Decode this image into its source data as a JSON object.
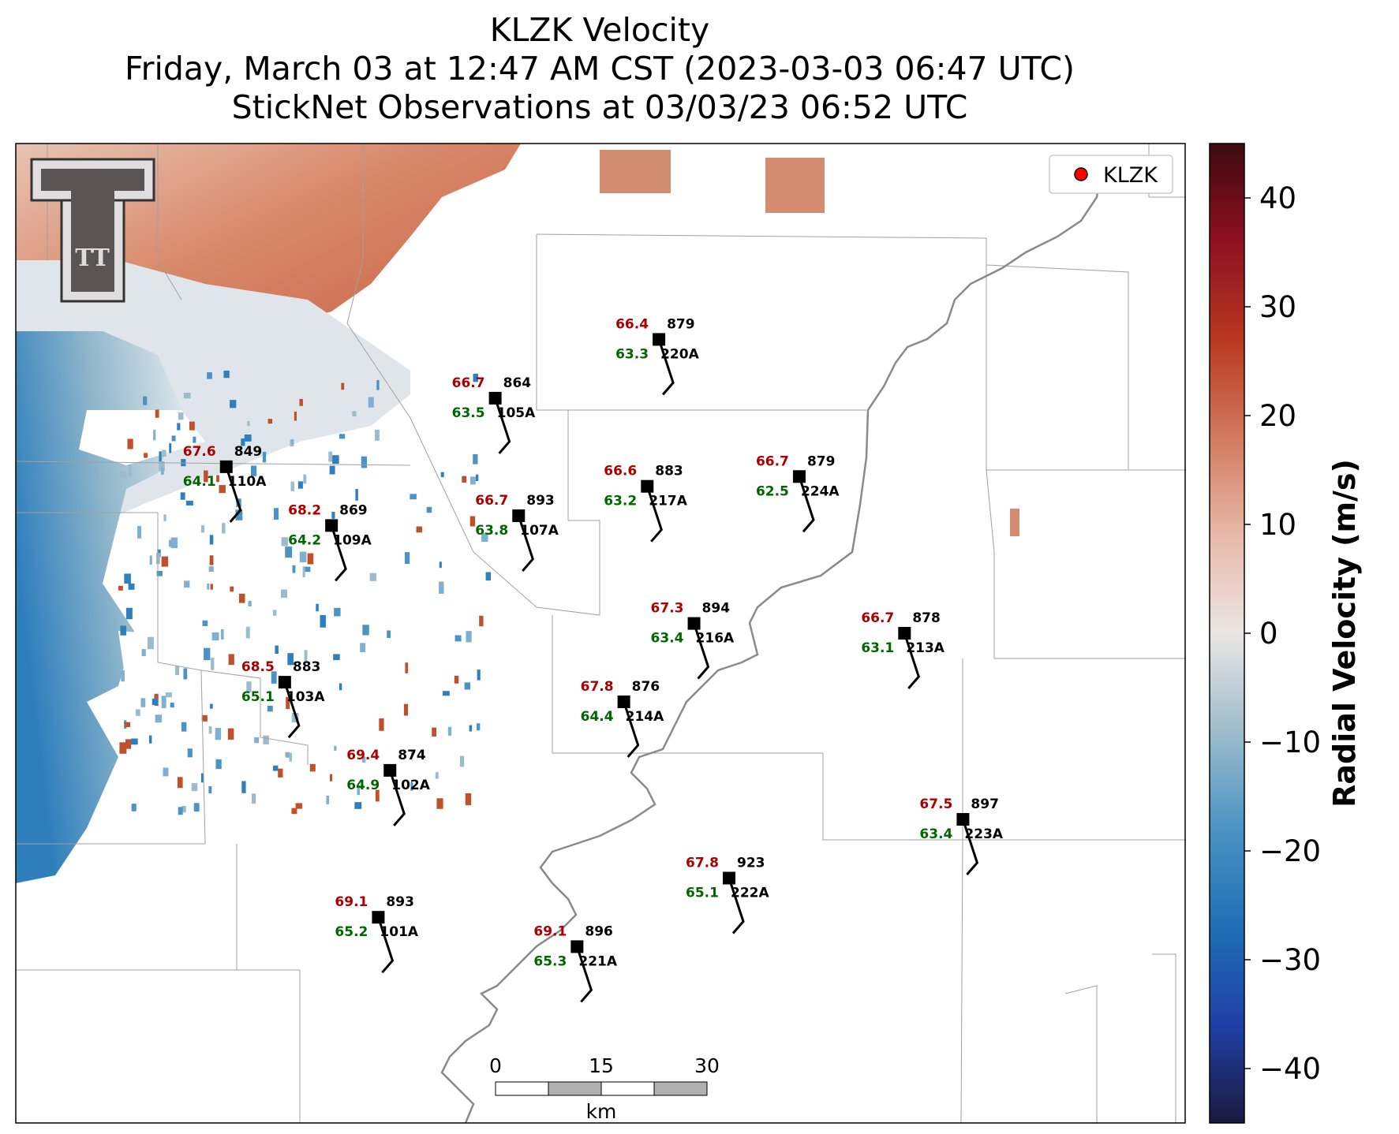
{
  "title": {
    "line1": "KLZK Velocity",
    "line2": "Friday, March 03 at 12:47 AM CST (2023-03-03 06:47 UTC)",
    "line3": "StickNet Observations at 03/03/23 06:52 UTC"
  },
  "legend": {
    "label": "KLZK",
    "marker_color": "#ff0000"
  },
  "colorbar": {
    "label": "Radial Velocity (m/s)",
    "range": [
      -45,
      45
    ],
    "ticks": [
      "40",
      "30",
      "20",
      "10",
      "0",
      "−10",
      "−20",
      "−30",
      "−40"
    ],
    "tick_values": [
      40,
      30,
      20,
      10,
      0,
      -10,
      -20,
      -30,
      -40
    ],
    "colors": [
      "#1a1a3e",
      "#1f3fa6",
      "#1f6fb5",
      "#4a93c4",
      "#9dbccb",
      "#e8e8e8",
      "#e8b8a8",
      "#d27a5e",
      "#b8381f",
      "#8f1020",
      "#3e0a10"
    ]
  },
  "scale_bar": {
    "ticks": [
      "0",
      "15",
      "30"
    ],
    "unit": "km"
  },
  "logo": {
    "text": "TT"
  },
  "colors": {
    "temperature": "#aa0000",
    "dewpoint": "#006600",
    "station": "#000000"
  },
  "stations": [
    {
      "id": "220A",
      "temp": "66.4",
      "dew": "63.3",
      "pressure": "879",
      "lon": 0.55,
      "lat": 0.8
    },
    {
      "id": "105A",
      "temp": "66.7",
      "dew": "63.5",
      "pressure": "864",
      "lon": 0.41,
      "lat": 0.74
    },
    {
      "id": "110A",
      "temp": "67.6",
      "dew": "64.1",
      "pressure": "849",
      "lon": 0.18,
      "lat": 0.67
    },
    {
      "id": "217A",
      "temp": "66.6",
      "dew": "63.2",
      "pressure": "883",
      "lon": 0.54,
      "lat": 0.65
    },
    {
      "id": "224A",
      "temp": "66.7",
      "dew": "62.5",
      "pressure": "879",
      "lon": 0.67,
      "lat": 0.66
    },
    {
      "id": "107A",
      "temp": "66.7",
      "dew": "63.8",
      "pressure": "893",
      "lon": 0.43,
      "lat": 0.62
    },
    {
      "id": "109A",
      "temp": "68.2",
      "dew": "64.2",
      "pressure": "869",
      "lon": 0.27,
      "lat": 0.61
    },
    {
      "id": "216A",
      "temp": "67.3",
      "dew": "63.4",
      "pressure": "894",
      "lon": 0.58,
      "lat": 0.51
    },
    {
      "id": "213A",
      "temp": "66.7",
      "dew": "63.1",
      "pressure": "878",
      "lon": 0.76,
      "lat": 0.5
    },
    {
      "id": "103A",
      "temp": "68.5",
      "dew": "65.1",
      "pressure": "883",
      "lon": 0.23,
      "lat": 0.45
    },
    {
      "id": "214A",
      "temp": "67.8",
      "dew": "64.4",
      "pressure": "876",
      "lon": 0.52,
      "lat": 0.43
    },
    {
      "id": "102A",
      "temp": "69.4",
      "dew": "64.9",
      "pressure": "874",
      "lon": 0.32,
      "lat": 0.36
    },
    {
      "id": "223A",
      "temp": "67.5",
      "dew": "63.4",
      "pressure": "897",
      "lon": 0.81,
      "lat": 0.31
    },
    {
      "id": "222A",
      "temp": "67.8",
      "dew": "65.1",
      "pressure": "923",
      "lon": 0.61,
      "lat": 0.25
    },
    {
      "id": "101A",
      "temp": "69.1",
      "dew": "65.2",
      "pressure": "893",
      "lon": 0.31,
      "lat": 0.21
    },
    {
      "id": "221A",
      "temp": "69.1",
      "dew": "65.3",
      "pressure": "896",
      "lon": 0.48,
      "lat": 0.18
    }
  ]
}
